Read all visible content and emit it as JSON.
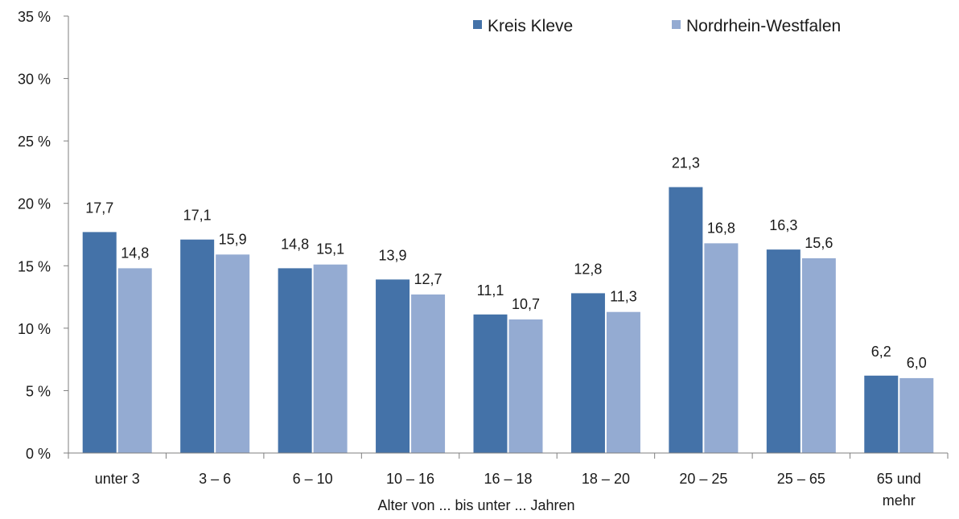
{
  "chart_data": {
    "type": "bar",
    "title": "",
    "xlabel": "Alter von ... bis unter ... Jahren",
    "ylabel": "",
    "ylim": [
      0,
      35
    ],
    "yticks": [
      {
        "value": 0,
        "label": "0 %"
      },
      {
        "value": 5,
        "label": "5 %"
      },
      {
        "value": 10,
        "label": "10 %"
      },
      {
        "value": 15,
        "label": "15 %"
      },
      {
        "value": 20,
        "label": "20 %"
      },
      {
        "value": 25,
        "label": "25 %"
      },
      {
        "value": 30,
        "label": "30 %"
      },
      {
        "value": 35,
        "label": "35 %"
      }
    ],
    "categories": [
      "unter 3",
      "3 –  6",
      "6 – 10",
      "10 – 16",
      "16 – 18",
      "18 – 20",
      "20 – 25",
      "25 – 65",
      "65 und mehr"
    ],
    "category_lines": [
      [
        "unter 3"
      ],
      [
        "3 –  6"
      ],
      [
        "6 – 10"
      ],
      [
        "10 – 16"
      ],
      [
        "16 – 18"
      ],
      [
        "18 – 20"
      ],
      [
        "20 – 25"
      ],
      [
        "25 – 65"
      ],
      [
        "65 und",
        "mehr"
      ]
    ],
    "series": [
      {
        "name": "Kreis Kleve",
        "color": "#4472a8",
        "values": [
          17.7,
          17.1,
          14.8,
          13.9,
          11.1,
          12.8,
          21.3,
          16.3,
          6.2
        ],
        "labels": [
          "17,7",
          "17,1",
          "14,8",
          "13,9",
          "11,1",
          "12,8",
          "21,3",
          "16,3",
          "6,2"
        ]
      },
      {
        "name": "Nordrhein-Westfalen",
        "color": "#94abd2",
        "values": [
          14.8,
          15.9,
          15.1,
          12.7,
          10.7,
          11.3,
          16.8,
          15.6,
          6.0
        ],
        "labels": [
          "14,8",
          "15,9",
          "15,1",
          "12,7",
          "10,7",
          "11,3",
          "16,8",
          "15,6",
          "6,0"
        ]
      }
    ],
    "legend_position": "top-right",
    "grid": false
  }
}
